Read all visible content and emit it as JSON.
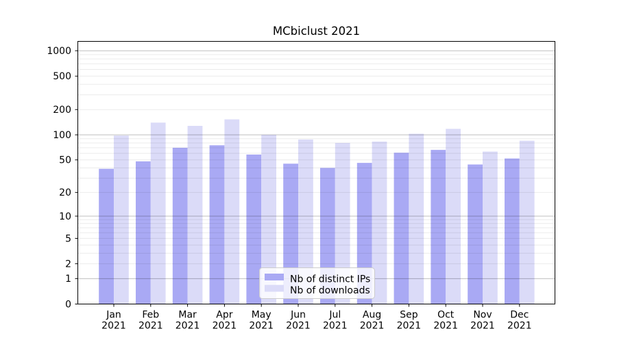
{
  "title": "MCbiclust 2021",
  "year": "2021",
  "months": [
    "Jan",
    "Feb",
    "Mar",
    "Apr",
    "May",
    "Jun",
    "Jul",
    "Aug",
    "Sep",
    "Oct",
    "Nov",
    "Dec"
  ],
  "colors": {
    "ips": "#a9a9f4",
    "downloads": "#dbdbf8",
    "axis": "#000000",
    "legend_border": "#cccccc"
  },
  "legend": {
    "items": [
      {
        "label": "Nb of distinct IPs",
        "color_key": "ips"
      },
      {
        "label": "Nb of downloads",
        "color_key": "downloads"
      }
    ],
    "position": "lower center"
  },
  "chart_data": {
    "type": "bar",
    "title": "MCbiclust 2021",
    "categories": [
      "Jan 2021",
      "Feb 2021",
      "Mar 2021",
      "Apr 2021",
      "May 2021",
      "Jun 2021",
      "Jul 2021",
      "Aug 2021",
      "Sep 2021",
      "Oct 2021",
      "Nov 2021",
      "Dec 2021"
    ],
    "series": [
      {
        "name": "Nb of distinct IPs",
        "color": "#a9a9f4",
        "values": [
          39,
          48,
          70,
          75,
          58,
          45,
          40,
          46,
          61,
          66,
          44,
          52
        ]
      },
      {
        "name": "Nb of downloads",
        "color": "#dbdbf8",
        "values": [
          98,
          140,
          128,
          153,
          100,
          88,
          80,
          83,
          103,
          118,
          63,
          85
        ]
      }
    ],
    "xlabel": "",
    "ylabel": "",
    "yscale": "log1p",
    "y_ticks": [
      0,
      1,
      2,
      5,
      10,
      20,
      50,
      100,
      200,
      500,
      1000
    ],
    "ylim": [
      0,
      1280
    ],
    "grid": true,
    "grid_minor": true,
    "legend_position": "lower center"
  }
}
